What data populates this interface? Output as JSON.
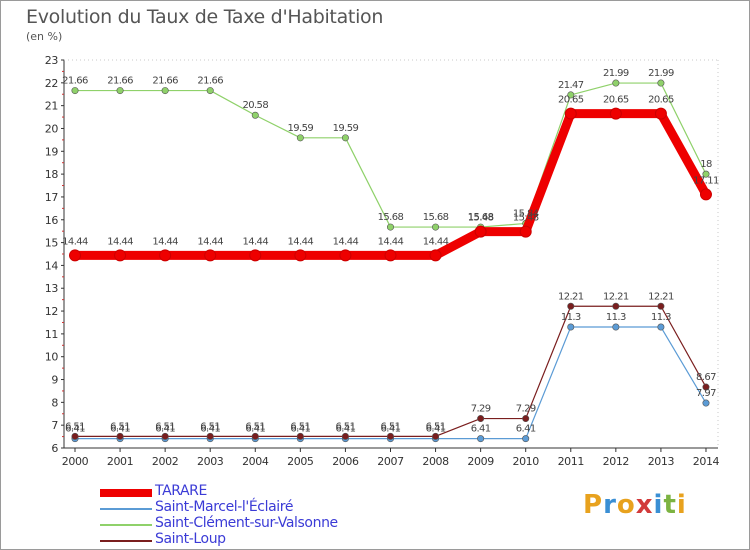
{
  "header": {
    "title": "Evolution du Taux de Taxe d'Habitation",
    "unit": "(en %)"
  },
  "logo": {
    "text": "Proxiti",
    "colors": [
      "#e8a21e",
      "#3a8fd4",
      "#e8a21e",
      "#d23a3a",
      "#3a8fd4",
      "#7cb342",
      "#e8a21e"
    ]
  },
  "chart_data": {
    "type": "line",
    "title": "Evolution du Taux de Taxe d'Habitation",
    "ylabel": "(en %)",
    "xlabel": "",
    "ylim": [
      6,
      23
    ],
    "yticks": [
      6,
      7,
      8,
      9,
      10,
      11,
      12,
      13,
      14,
      15,
      16,
      17,
      18,
      19,
      20,
      21,
      22,
      23
    ],
    "grid": false,
    "legend_position": "bottom",
    "x": [
      "2000",
      "2001",
      "2002",
      "2003",
      "2004",
      "2005",
      "2006",
      "2007",
      "2008",
      "2009",
      "2010",
      "2011",
      "2012",
      "2013",
      "2014"
    ],
    "series": [
      {
        "name": "TARARE",
        "color": "#ee0000",
        "values": [
          14.44,
          14.44,
          14.44,
          14.44,
          14.44,
          14.44,
          14.44,
          14.44,
          14.44,
          15.48,
          15.48,
          20.65,
          20.65,
          20.65,
          17.11
        ],
        "labels": [
          "14.44",
          "14.44",
          "14.44",
          "14.44",
          "14.44",
          "14.44",
          "14.44",
          "14.44",
          "14.44",
          "15.48",
          "15.48",
          "20.65",
          "20.65",
          "20.65",
          "17.11"
        ]
      },
      {
        "name": "Saint-Marcel-l'Éclairé",
        "color": "#5b9bd5",
        "values": [
          6.41,
          6.41,
          6.41,
          6.41,
          6.41,
          6.41,
          6.41,
          6.41,
          6.41,
          6.41,
          6.41,
          11.3,
          11.3,
          11.3,
          7.97
        ],
        "labels": [
          "6.41",
          "6.41",
          "6.41",
          "6.41",
          "6.41",
          "6.41",
          "6.41",
          "6.41",
          "6.41",
          "6.41",
          "6.41",
          "11.3",
          "11.3",
          "11.3",
          "7.97"
        ]
      },
      {
        "name": "Saint-Clément-sur-Valsonne",
        "color": "#8fd16a",
        "values": [
          21.66,
          21.66,
          21.66,
          21.66,
          20.58,
          19.59,
          19.59,
          15.68,
          15.68,
          15.68,
          15.84,
          21.47,
          21.99,
          21.99,
          18
        ],
        "labels": [
          "21.66",
          "21.66",
          "21.66",
          "21.66",
          "20.58",
          "19.59",
          "19.59",
          "15.68",
          "15.68",
          "15.68",
          "15.84",
          "21.47",
          "21.99",
          "21.99",
          "18"
        ]
      },
      {
        "name": "Saint-Loup",
        "color": "#7a1e1e",
        "values": [
          6.51,
          6.51,
          6.51,
          6.51,
          6.51,
          6.51,
          6.51,
          6.51,
          6.51,
          7.29,
          7.29,
          12.21,
          12.21,
          12.21,
          8.67
        ],
        "labels": [
          "6.51",
          "6.51",
          "6.51",
          "6.51",
          "6.51",
          "6.51",
          "6.51",
          "6.51",
          "6.51",
          "7.29",
          "7.29",
          "12.21",
          "12.21",
          "12.21",
          "8.67"
        ]
      }
    ]
  }
}
